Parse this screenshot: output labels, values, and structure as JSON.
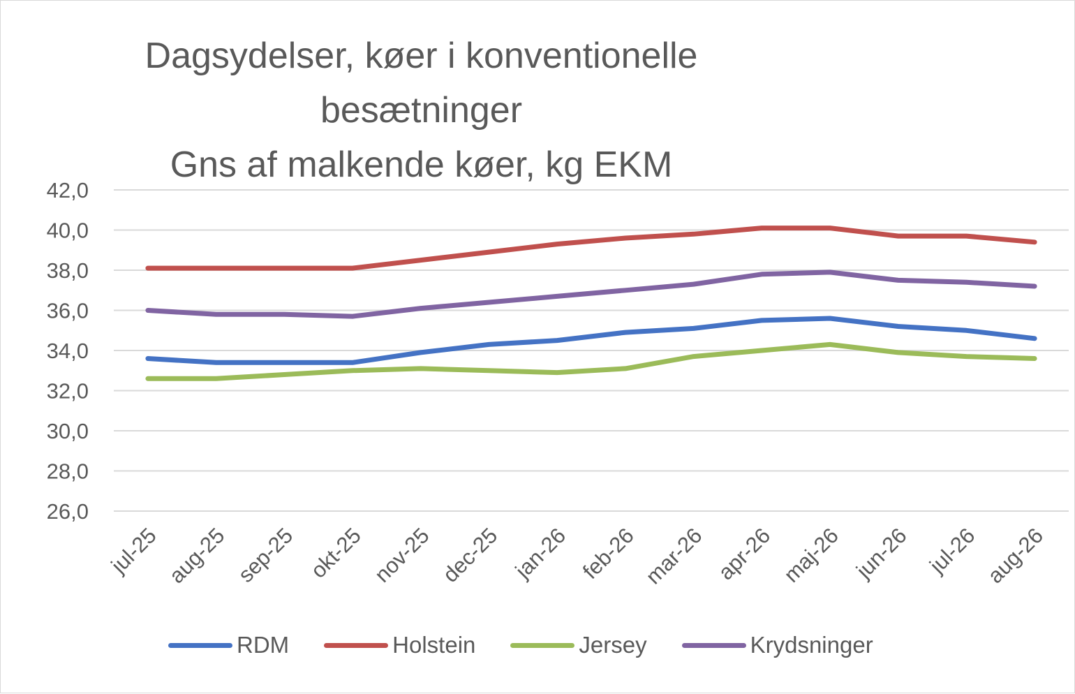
{
  "chart_data": {
    "type": "line",
    "title_lines": [
      "Dagsydelser, køer i konventionelle",
      "besætninger",
      "Gns af malkende køer, kg EKM"
    ],
    "xlabel": "",
    "ylabel": "",
    "categories": [
      "jul-25",
      "aug-25",
      "sep-25",
      "okt-25",
      "nov-25",
      "dec-25",
      "jan-26",
      "feb-26",
      "mar-26",
      "apr-26",
      "maj-26",
      "jun-26",
      "jul-26",
      "aug-26"
    ],
    "ylim": [
      26.0,
      42.0
    ],
    "yticks": [
      "42,0",
      "40,0",
      "38,0",
      "36,0",
      "34,0",
      "32,0",
      "30,0",
      "28,0",
      "26,0"
    ],
    "ytick_values": [
      42,
      40,
      38,
      36,
      34,
      32,
      30,
      28,
      26
    ],
    "grid": "horizontal",
    "legend_position": "bottom",
    "series": [
      {
        "name": "RDM",
        "color": "#4472c4",
        "values": [
          33.6,
          33.4,
          33.4,
          33.4,
          33.9,
          34.3,
          34.5,
          34.9,
          35.1,
          35.5,
          35.6,
          35.2,
          35.0,
          34.6
        ]
      },
      {
        "name": "Holstein",
        "color": "#c0504d",
        "values": [
          38.1,
          38.1,
          38.1,
          38.1,
          38.5,
          38.9,
          39.3,
          39.6,
          39.8,
          40.1,
          40.1,
          39.7,
          39.7,
          39.4
        ]
      },
      {
        "name": "Jersey",
        "color": "#9bbb59",
        "values": [
          32.6,
          32.6,
          32.8,
          33.0,
          33.1,
          33.0,
          32.9,
          33.1,
          33.7,
          34.0,
          34.3,
          33.9,
          33.7,
          33.6
        ]
      },
      {
        "name": "Krydsninger",
        "color": "#8064a2",
        "values": [
          36.0,
          35.8,
          35.8,
          35.7,
          36.1,
          36.4,
          36.7,
          37.0,
          37.3,
          37.8,
          37.9,
          37.5,
          37.4,
          37.2
        ]
      }
    ]
  }
}
